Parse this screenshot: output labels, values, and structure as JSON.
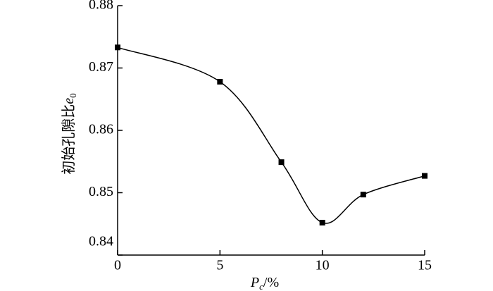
{
  "chart_data": {
    "type": "line",
    "xlabel": {
      "var": "P",
      "sub": "c",
      "suffix": "/%"
    },
    "ylabel": {
      "text": "初始孔隙比",
      "var": "e",
      "sub": "0"
    },
    "x": [
      0,
      5,
      8,
      10,
      12,
      15
    ],
    "series": [
      {
        "color": "#000000",
        "values": [
          0.8733,
          0.8678,
          0.8549,
          0.8452,
          0.8497,
          0.8527
        ]
      }
    ],
    "xlim": [
      0,
      15
    ],
    "xticks": [
      0,
      5,
      10,
      15
    ],
    "ylim": [
      0.84,
      0.88
    ],
    "yticks": [
      0.84,
      0.85,
      0.86,
      0.87,
      0.88
    ],
    "smooth": true,
    "marker": "square"
  }
}
